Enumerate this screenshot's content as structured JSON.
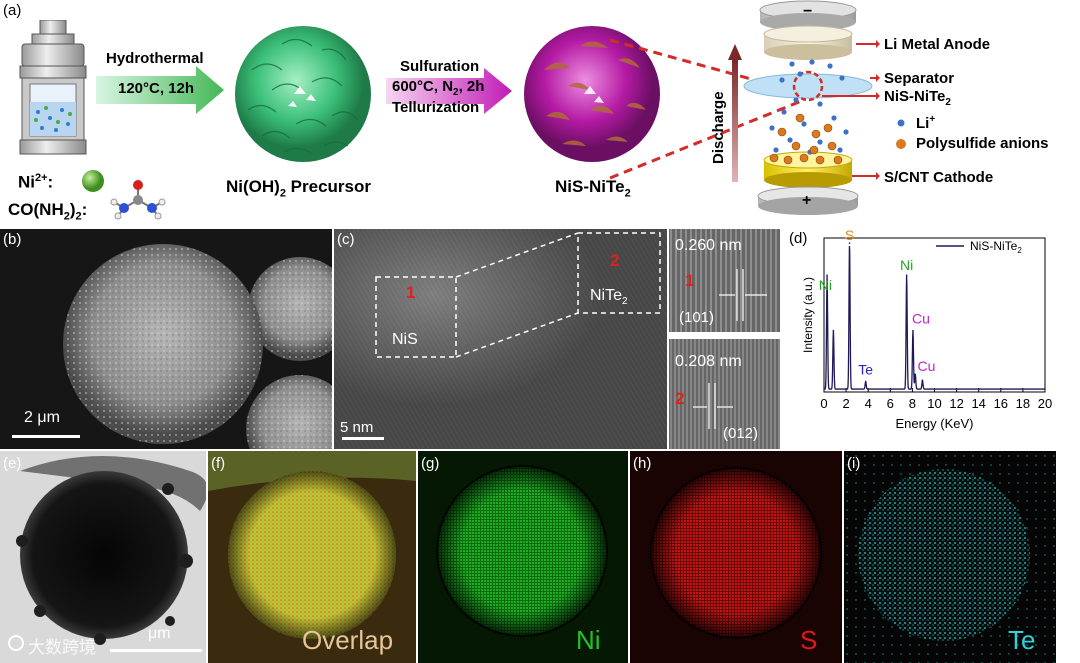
{
  "panel_a": {
    "label": "(a)",
    "ni_label": "Ni",
    "ni_sup": "2+",
    "ni_suffix": ":",
    "urea_label": "CO(NH",
    "urea_sub": "2",
    "urea_suffix": ")",
    "urea_sub2": "2",
    "urea_colon": ":",
    "step1_top": "Hydrothermal",
    "step1_bottom": "120°C, 12h",
    "precursor_pre": "Ni(OH)",
    "precursor_sub": "2",
    "precursor_post": " Precursor",
    "step2_line1": "Sulfuration",
    "step2_line2_pre": "600°C, N",
    "step2_line2_sub": "2",
    "step2_line2_post": ", 2h",
    "step2_line3": "Tellurization",
    "product_pre": "NiS-NiTe",
    "product_sub": "2",
    "discharge": "Discharge",
    "minus": "−",
    "plus": "+",
    "anode": "Li Metal Anode",
    "separator": "Separator",
    "interlayer_pre": "NiS-NiTe",
    "interlayer_sub": "2",
    "li_label": "Li",
    "li_sup": "+",
    "polysulfide": "Polysulfide anions",
    "cathode": "S/CNT Cathode",
    "colors": {
      "green": "#3cb878",
      "magenta": "#b81fa8",
      "arrow_red": "#d42a2a"
    }
  },
  "panel_b": {
    "label": "(b)",
    "scale": "2 μm"
  },
  "panel_c": {
    "label": "(c)",
    "scale": "5 nm",
    "box1_num": "1",
    "box1_phase": "NiS",
    "box2_num": "2",
    "box2_phase_pre": "NiTe",
    "box2_phase_sub": "2",
    "inset1_d": "0.260 nm",
    "inset1_num": "1",
    "inset1_plane": "(101)",
    "inset2_d": "0.208 nm",
    "inset2_num": "2",
    "inset2_plane": "(012)"
  },
  "panel_d": {
    "label": "(d)",
    "legend_pre": "NiS-NiTe",
    "legend_sub": "2",
    "peak_labels": [
      "S",
      "Ni",
      "Ni",
      "Te",
      "Cu",
      "Cu"
    ]
  },
  "chart_data": {
    "type": "line",
    "xlabel": "Energy (KeV)",
    "ylabel": "Intensity (a.u.)",
    "xlim": [
      0,
      20
    ],
    "xticks": [
      0,
      2,
      4,
      6,
      8,
      10,
      12,
      14,
      16,
      18,
      20
    ],
    "series": [
      {
        "name": "NiS-NiTe2",
        "peaks": [
          {
            "x": 0.28,
            "y": 0.78
          },
          {
            "x": 0.85,
            "y": 0.4
          },
          {
            "x": 2.31,
            "y": 1.0
          },
          {
            "x": 3.77,
            "y": 0.05
          },
          {
            "x": 7.48,
            "y": 0.78
          },
          {
            "x": 8.05,
            "y": 0.4
          },
          {
            "x": 8.26,
            "y": 0.1
          },
          {
            "x": 8.91,
            "y": 0.06
          }
        ]
      }
    ]
  },
  "panel_e": {
    "label": "(e)",
    "scale": "μm"
  },
  "panel_f": {
    "label": "(f)",
    "name": "Overlap"
  },
  "panel_g": {
    "label": "(g)",
    "name": "Ni",
    "color": "#22c425"
  },
  "panel_h": {
    "label": "(h)",
    "name": "S",
    "color": "#e01818"
  },
  "panel_i": {
    "label": "(i)",
    "name": "Te",
    "color": "#2fd2d8"
  },
  "watermark": "大数跨境"
}
